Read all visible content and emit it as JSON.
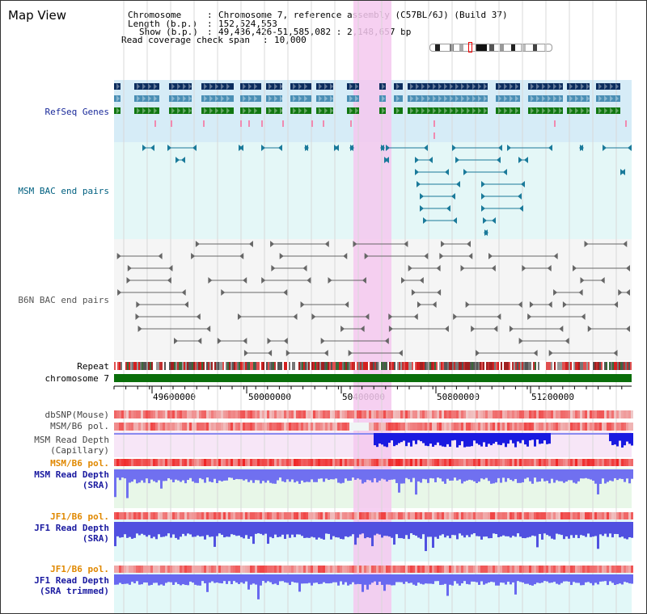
{
  "title": "Map View",
  "info": {
    "chromosome_key": "Chromosome",
    "chromosome_val": "Chromosome 7, reference assembly (C57BL/6J) (Build 37)",
    "length_key": "Length (b.p.)",
    "length_val": "152,524,553",
    "show_key": "Show (b.p.)",
    "show_val": "49,436,426-51,585,082 : 2,148,657 bp",
    "coverage_key": "Read coverage check span",
    "coverage_val": "10,000"
  },
  "tracks": {
    "refseq": "RefSeq Genes",
    "msm_bac": "MSM BAC end pairs",
    "b6n_bac": "B6N BAC end pairs",
    "repeat": "Repeat",
    "chromosome": "chromosome 7",
    "dbsnp": "dbSNP(Mouse)",
    "msm_b6_pol_1": "MSM/B6 pol.",
    "msm_depth_cap_1": "MSM Read Depth",
    "msm_depth_cap_2": "(Capillary)",
    "msm_b6_pol_2": "MSM/B6 pol.",
    "msm_depth_sra_1": "MSM Read Depth",
    "msm_depth_sra_2": "(SRA)",
    "jf1_b6_pol_1": "JF1/B6 pol.",
    "jf1_depth_sra_1": "JF1 Read Depth",
    "jf1_depth_sra_2": "(SRA)",
    "jf1_b6_pol_2": "JF1/B6 pol.",
    "jf1_depth_trim_1": "JF1 Read Depth",
    "jf1_depth_trim_2": "(SRA trimmed)"
  },
  "axis": {
    "ticks": [
      "49600000",
      "50000000",
      "50400000",
      "50800000",
      "51200000"
    ]
  },
  "colors": {
    "gene_dark": "#0b2d5e",
    "gene_mid": "#4a8fb5",
    "gene_green": "#117711",
    "msm_label": "#006080",
    "refseq_label": "#1a2a9a",
    "read_depth_label": "#1a1aa0",
    "pol_orange": "#e08800",
    "highlight": "#f5c8ef"
  }
}
